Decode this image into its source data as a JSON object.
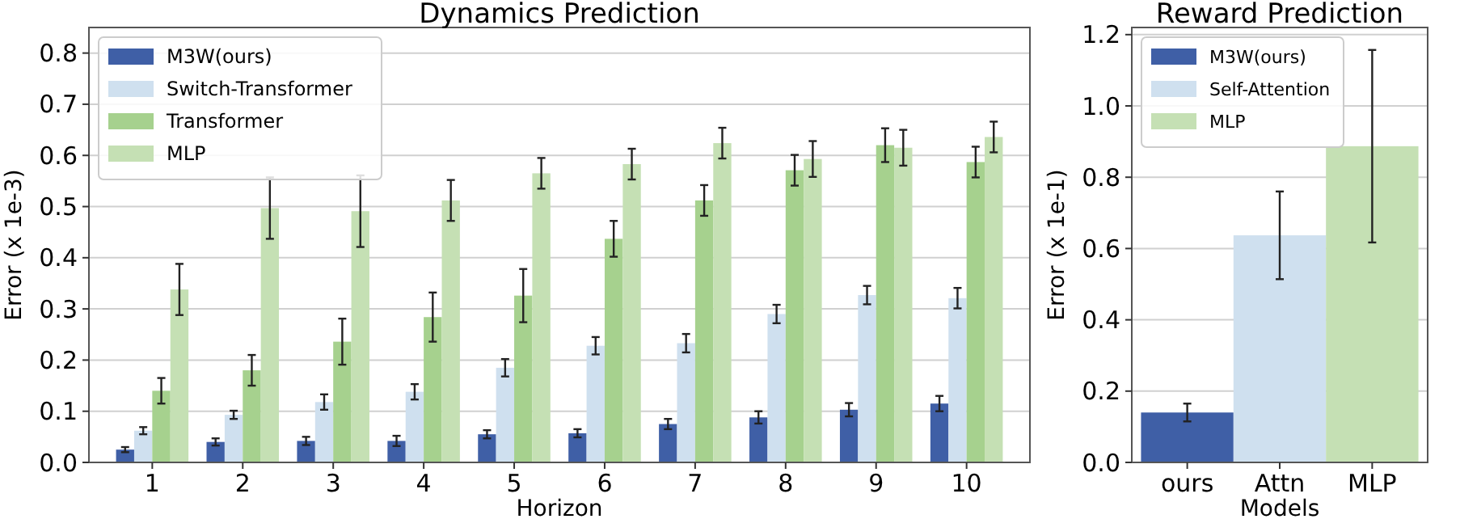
{
  "chart_data": [
    {
      "type": "bar",
      "title": "Dynamics Prediction",
      "xlabel": "Horizon",
      "ylabel": "Error (x 1e-3)",
      "categories": [
        "1",
        "2",
        "3",
        "4",
        "5",
        "6",
        "7",
        "8",
        "9",
        "10"
      ],
      "ylim": [
        0,
        0.85
      ],
      "yticks": [
        {
          "value": 0,
          "label": "0.0"
        },
        {
          "value": 0.1,
          "label": "0.1"
        },
        {
          "value": 0.2,
          "label": "0.2"
        },
        {
          "value": 0.3,
          "label": "0.3"
        },
        {
          "value": 0.4,
          "label": "0.4"
        },
        {
          "value": 0.5,
          "label": "0.5"
        },
        {
          "value": 0.6,
          "label": "0.6"
        },
        {
          "value": 0.7,
          "label": "0.7"
        },
        {
          "value": 0.8,
          "label": "0.8"
        }
      ],
      "grid": "y",
      "legend": "top left",
      "series": [
        {
          "name": "M3W(ours)",
          "color": "#3f5fa6",
          "values": [
            0.025,
            0.04,
            0.042,
            0.042,
            0.055,
            0.057,
            0.075,
            0.088,
            0.103,
            0.115
          ],
          "errors": [
            0.005,
            0.007,
            0.008,
            0.01,
            0.008,
            0.008,
            0.01,
            0.012,
            0.013,
            0.015
          ]
        },
        {
          "name": "Switch-Transformer",
          "color": "#cfe0ef",
          "values": [
            0.062,
            0.093,
            0.118,
            0.138,
            0.185,
            0.228,
            0.233,
            0.29,
            0.327,
            0.321
          ],
          "errors": [
            0.007,
            0.008,
            0.015,
            0.015,
            0.017,
            0.017,
            0.018,
            0.018,
            0.018,
            0.02
          ]
        },
        {
          "name": "Transformer",
          "color": "#a6d18e",
          "values": [
            0.14,
            0.18,
            0.236,
            0.284,
            0.326,
            0.437,
            0.512,
            0.571,
            0.62,
            0.587
          ],
          "errors": [
            0.025,
            0.03,
            0.045,
            0.048,
            0.052,
            0.035,
            0.03,
            0.03,
            0.033,
            0.03
          ]
        },
        {
          "name": "MLP",
          "color": "#c5e0b4",
          "values": [
            0.338,
            0.497,
            0.491,
            0.512,
            0.565,
            0.583,
            0.624,
            0.593,
            0.615,
            0.636
          ],
          "errors": [
            0.05,
            0.06,
            0.07,
            0.04,
            0.03,
            0.03,
            0.03,
            0.035,
            0.035,
            0.03
          ]
        }
      ]
    },
    {
      "type": "bar",
      "title": "Reward Prediction",
      "xlabel": "Models",
      "ylabel": "Error (x 1e-1)",
      "categories": [
        "ours",
        "Attn",
        "MLP"
      ],
      "ylim": [
        0,
        1.22
      ],
      "yticks": [
        {
          "value": 0,
          "label": "0.0"
        },
        {
          "value": 0.2,
          "label": "0.2"
        },
        {
          "value": 0.4,
          "label": "0.4"
        },
        {
          "value": 0.6,
          "label": "0.6"
        },
        {
          "value": 0.8,
          "label": "0.8"
        },
        {
          "value": 1,
          "label": "1.0"
        },
        {
          "value": 1.2,
          "label": "1.2"
        }
      ],
      "grid": "y",
      "legend": "top left",
      "stacked": true,
      "series": [
        {
          "name": "M3W(ours)",
          "color": "#3f5fa6",
          "values": [
            0.14,
            null,
            null
          ],
          "errors": [
            0.025,
            null,
            null
          ]
        },
        {
          "name": "Self-Attention",
          "color": "#cfe0ef",
          "values": [
            null,
            0.637,
            null
          ],
          "errors": [
            null,
            0.123,
            null
          ]
        },
        {
          "name": "MLP",
          "color": "#c5e0b4",
          "values": [
            null,
            null,
            0.887
          ],
          "errors": [
            null,
            null,
            0.27
          ]
        }
      ]
    }
  ]
}
